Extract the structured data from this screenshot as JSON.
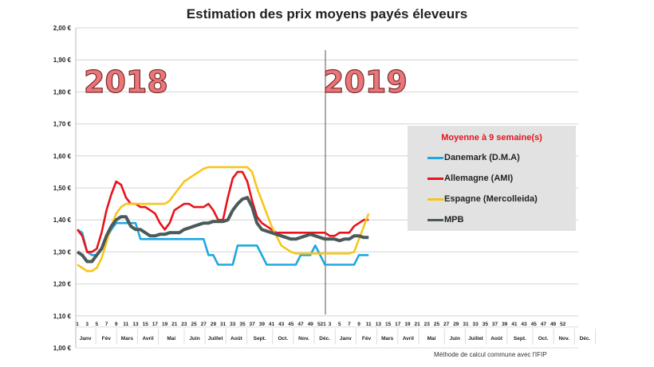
{
  "chart_data": {
    "type": "line",
    "title": "Estimation des prix moyens payés éleveurs",
    "ylim": [
      1.0,
      2.0
    ],
    "yticks": [
      "1,00 €",
      "1,10 €",
      "1,20 €",
      "1,30 €",
      "1,40 €",
      "1,50 €",
      "1,60 €",
      "1,70 €",
      "1,80 €",
      "1,90 €",
      "2,00 €"
    ],
    "year_labels": [
      "2018",
      "2019"
    ],
    "week_labels": [
      "1",
      "3",
      "5",
      "7",
      "9",
      "11",
      "13",
      "15",
      "17",
      "19",
      "21",
      "23",
      "25",
      "27",
      "29",
      "31",
      "33",
      "35",
      "37",
      "39",
      "41",
      "43",
      "45",
      "47",
      "49",
      "521",
      "3",
      "5",
      "7",
      "9",
      "11",
      "13",
      "15",
      "17",
      "19",
      "21",
      "23",
      "25",
      "27",
      "29",
      "31",
      "33",
      "35",
      "37",
      "39",
      "41",
      "43",
      "45",
      "47",
      "49",
      "52"
    ],
    "months": [
      "Janv",
      "Fév",
      "Mars",
      "Avril",
      "Mai",
      "Juin",
      "Juillet",
      "Août",
      "Sept.",
      "Oct.",
      "Nov.",
      "Déc.",
      "Janv",
      "Fév",
      "Mars",
      "Avril",
      "Mai",
      "Juin",
      "Juillet",
      "Août",
      "Sept.",
      "Oct.",
      "Nov.",
      "Déc."
    ],
    "legend_title": "Moyenne à  9 semaine(s)",
    "legend_placement": "right",
    "x_note": "weeks 2018 W1 to 2019 W9",
    "series": [
      {
        "name": "Danemark (D.M.A)",
        "color": "#1fa8e0",
        "values": [
          1.37,
          1.36,
          1.3,
          1.29,
          1.29,
          1.31,
          1.34,
          1.37,
          1.39,
          1.39,
          1.39,
          1.39,
          1.39,
          1.34,
          1.34,
          1.34,
          1.34,
          1.34,
          1.34,
          1.34,
          1.34,
          1.34,
          1.34,
          1.34,
          1.34,
          1.34,
          1.34,
          1.29,
          1.29,
          1.26,
          1.26,
          1.26,
          1.26,
          1.32,
          1.32,
          1.32,
          1.32,
          1.32,
          1.29,
          1.26,
          1.26,
          1.26,
          1.26,
          1.26,
          1.26,
          1.26,
          1.29,
          1.29,
          1.29,
          1.32,
          1.29,
          1.26,
          1.26,
          1.26,
          1.26,
          1.26,
          1.26,
          1.26,
          1.29,
          1.29,
          1.29
        ]
      },
      {
        "name": "Allemagne (AMI)",
        "color": "#e8131b",
        "values": [
          1.37,
          1.35,
          1.3,
          1.3,
          1.31,
          1.36,
          1.43,
          1.48,
          1.52,
          1.51,
          1.47,
          1.45,
          1.45,
          1.44,
          1.44,
          1.43,
          1.42,
          1.39,
          1.37,
          1.39,
          1.43,
          1.44,
          1.45,
          1.45,
          1.44,
          1.44,
          1.44,
          1.45,
          1.43,
          1.4,
          1.4,
          1.47,
          1.53,
          1.55,
          1.55,
          1.52,
          1.46,
          1.41,
          1.39,
          1.38,
          1.37,
          1.36,
          1.36,
          1.36,
          1.36,
          1.36,
          1.36,
          1.36,
          1.36,
          1.36,
          1.36,
          1.36,
          1.35,
          1.35,
          1.36,
          1.36,
          1.36,
          1.38,
          1.39,
          1.4,
          1.4
        ]
      },
      {
        "name": "Espagne (Mercolleida)",
        "color": "#f7c51a",
        "values": [
          1.26,
          1.25,
          1.24,
          1.24,
          1.25,
          1.28,
          1.33,
          1.38,
          1.42,
          1.44,
          1.45,
          1.45,
          1.45,
          1.45,
          1.45,
          1.45,
          1.45,
          1.45,
          1.45,
          1.46,
          1.48,
          1.5,
          1.52,
          1.53,
          1.54,
          1.55,
          1.56,
          1.565,
          1.565,
          1.565,
          1.565,
          1.565,
          1.565,
          1.565,
          1.565,
          1.565,
          1.55,
          1.5,
          1.46,
          1.42,
          1.38,
          1.35,
          1.32,
          1.31,
          1.3,
          1.295,
          1.295,
          1.295,
          1.295,
          1.295,
          1.295,
          1.295,
          1.295,
          1.295,
          1.295,
          1.295,
          1.295,
          1.3,
          1.34,
          1.38,
          1.42
        ]
      },
      {
        "name": "MPB",
        "color": "#4a5a5a",
        "values": [
          1.3,
          1.29,
          1.27,
          1.27,
          1.29,
          1.31,
          1.35,
          1.38,
          1.4,
          1.41,
          1.41,
          1.38,
          1.37,
          1.37,
          1.36,
          1.35,
          1.35,
          1.355,
          1.355,
          1.36,
          1.36,
          1.36,
          1.37,
          1.375,
          1.38,
          1.385,
          1.39,
          1.39,
          1.395,
          1.395,
          1.395,
          1.4,
          1.43,
          1.45,
          1.465,
          1.47,
          1.44,
          1.39,
          1.37,
          1.365,
          1.36,
          1.355,
          1.35,
          1.345,
          1.34,
          1.34,
          1.345,
          1.35,
          1.355,
          1.35,
          1.345,
          1.34,
          1.34,
          1.34,
          1.335,
          1.34,
          1.34,
          1.35,
          1.35,
          1.345,
          1.345
        ]
      }
    ]
  },
  "footnote": "Méthode de calcul commune avec l'IFIP"
}
